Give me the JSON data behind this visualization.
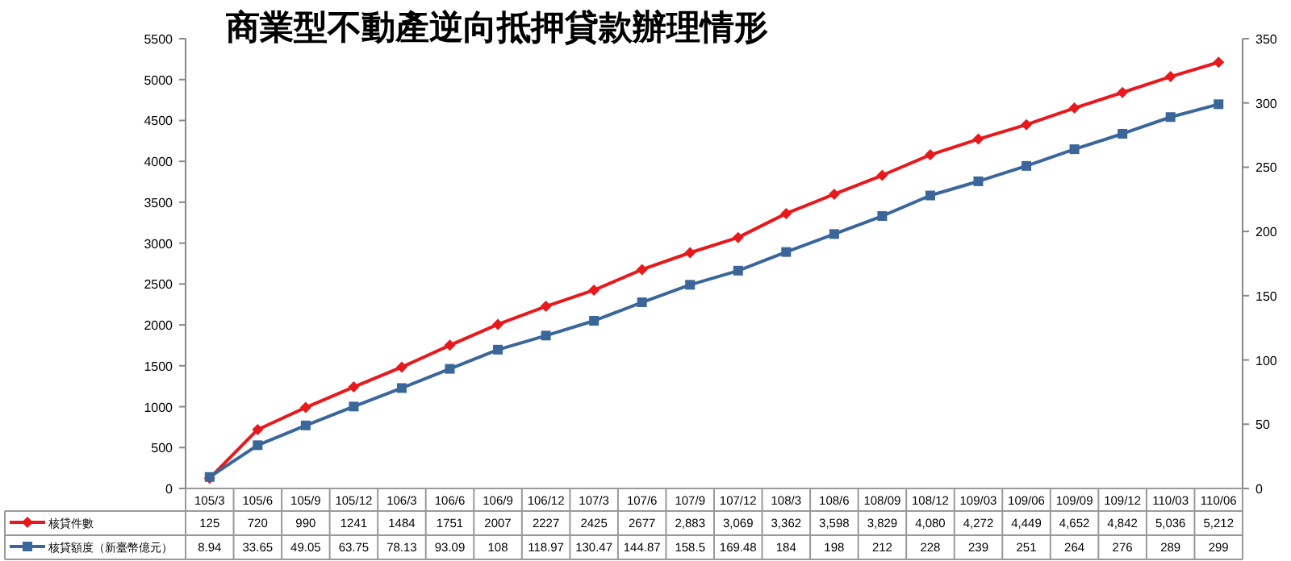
{
  "chart_data": {
    "type": "line",
    "title": "商業型不動產逆向抵押貸款辦理情形",
    "categories": [
      "105/3",
      "105/6",
      "105/9",
      "105/12",
      "106/3",
      "106/6",
      "106/9",
      "106/12",
      "107/3",
      "107/6",
      "107/9",
      "107/12",
      "108/3",
      "108/6",
      "108/09",
      "108/12",
      "109/03",
      "109/06",
      "109/09",
      "109/12",
      "110/03",
      "110/06"
    ],
    "series": [
      {
        "name": "核貸件數",
        "color": "#e8181c",
        "marker": "diamond",
        "values": [
          125,
          720,
          990,
          1241,
          1484,
          1751,
          2007,
          2227,
          2425,
          2677,
          2883,
          3069,
          3362,
          3598,
          3829,
          4080,
          4272,
          4449,
          4652,
          4842,
          5036,
          5212
        ],
        "value_labels": [
          "125",
          "720",
          "990",
          "1241",
          "1484",
          "1751",
          "2007",
          "2227",
          "2425",
          "2677",
          "2,883",
          "3,069",
          "3,362",
          "3,598",
          "3,829",
          "4,080",
          "4,272",
          "4,449",
          "4,652",
          "4,842",
          "5,036",
          "5,212"
        ]
      },
      {
        "name": "核貸額度（新臺幣億元）",
        "color": "#3a6699",
        "marker": "square",
        "axis": "y2",
        "values": [
          8.94,
          33.65,
          49.05,
          63.75,
          78.13,
          93.09,
          108,
          118.97,
          130.47,
          144.87,
          158.5,
          169.48,
          184,
          198,
          212,
          228,
          239,
          251,
          264,
          276,
          289,
          299
        ],
        "value_labels": [
          "8.94",
          "33.65",
          "49.05",
          "63.75",
          "78.13",
          "93.09",
          "108",
          "118.97",
          "130.47",
          "144.87",
          "158.5",
          "169.48",
          "184",
          "198",
          "212",
          "228",
          "239",
          "251",
          "264",
          "276",
          "289",
          "299"
        ]
      }
    ],
    "ylim": [
      0,
      5500
    ],
    "yticks": [
      0,
      500,
      1000,
      1500,
      2000,
      2500,
      3000,
      3500,
      4000,
      4500,
      5000,
      5500
    ],
    "y2lim": [
      0,
      350
    ],
    "y2ticks": [
      0,
      50,
      100,
      150,
      200,
      250,
      300,
      350
    ],
    "legend": "left",
    "grid": false
  }
}
